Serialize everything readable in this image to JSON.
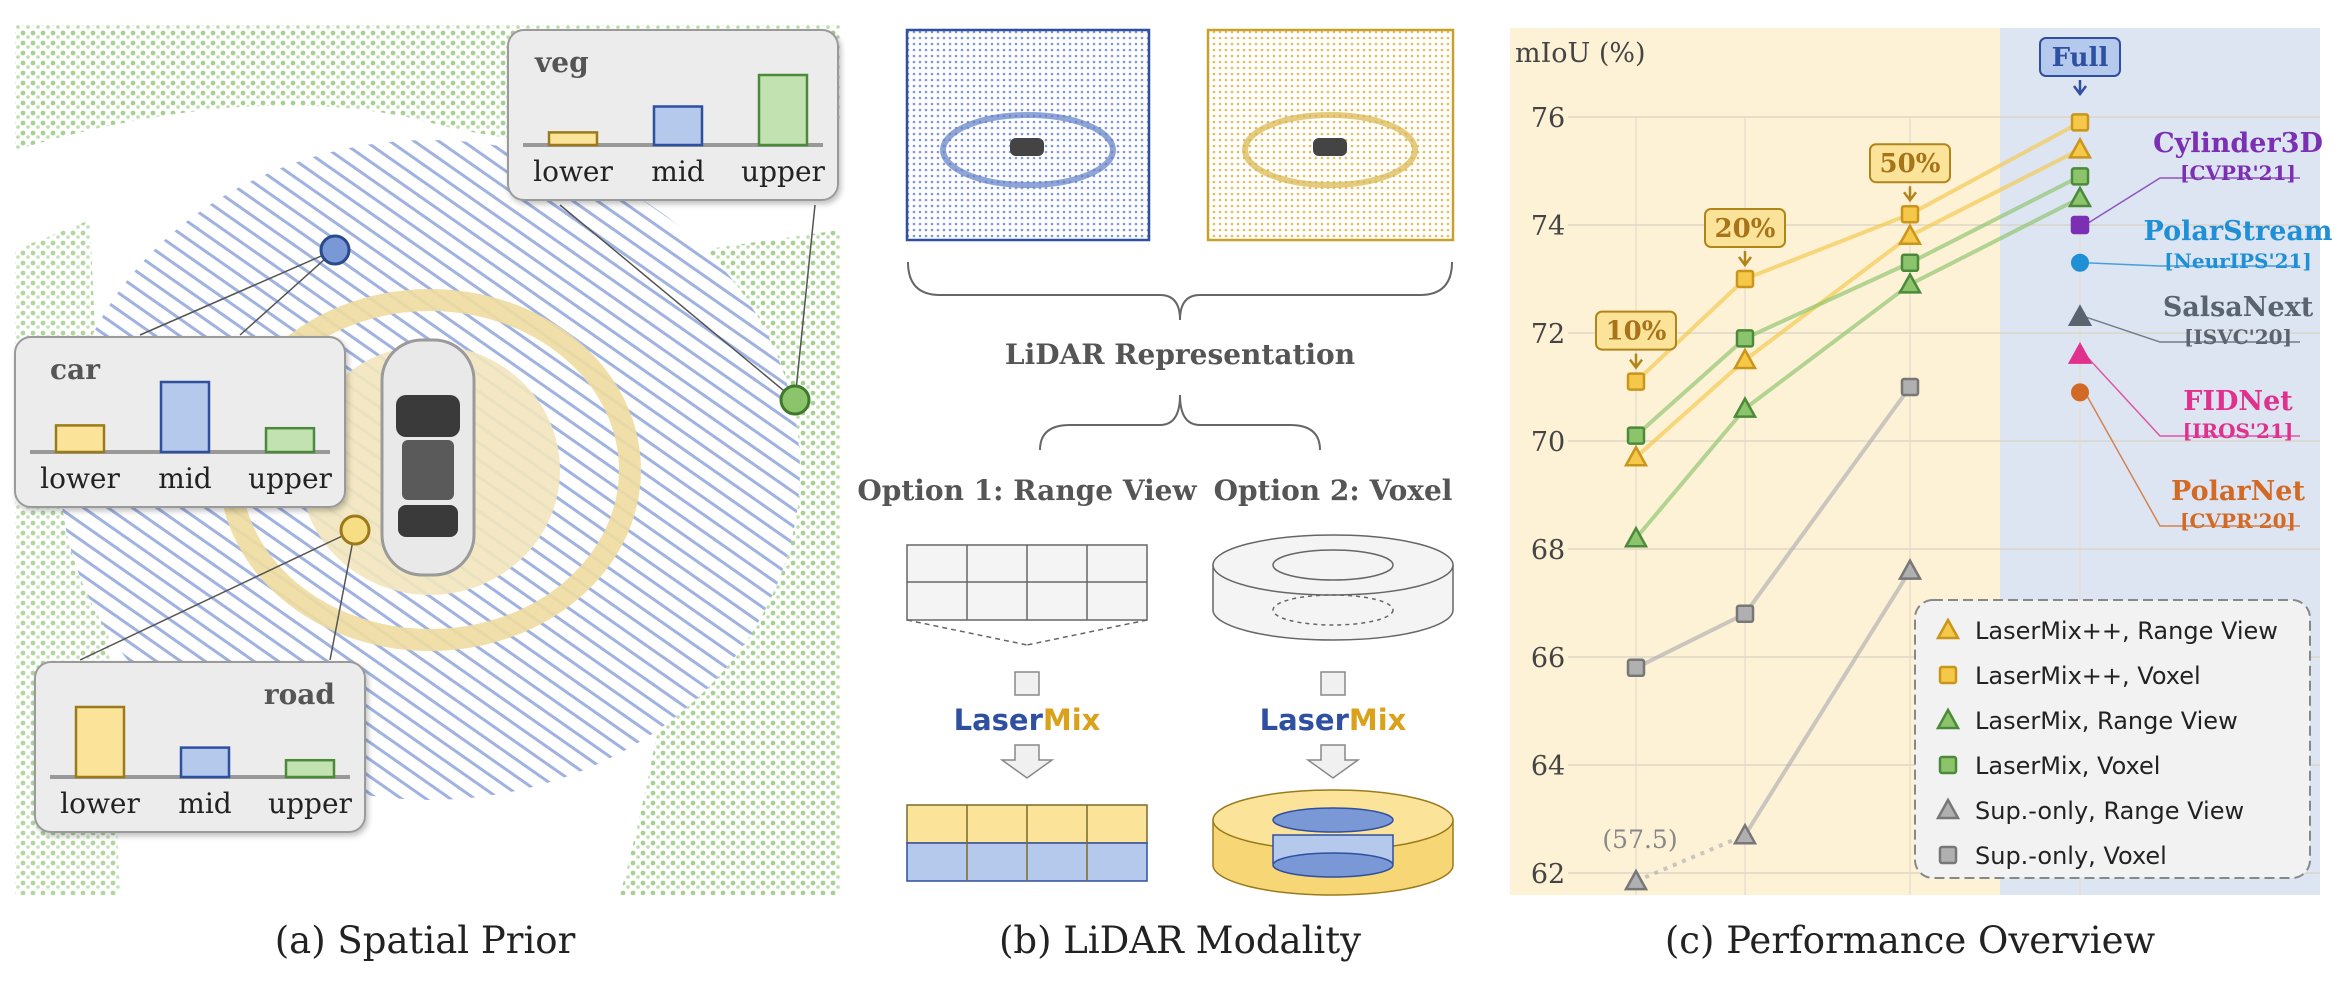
{
  "captions": {
    "a": "(a) Spatial Prior",
    "b": "(b) LiDAR Modality",
    "c": "(c) Performance Overview"
  },
  "panel_a": {
    "bar_labels": [
      "lower",
      "mid",
      "upper"
    ],
    "boxes": [
      {
        "title": "veg",
        "values": [
          0.18,
          0.55,
          1.0
        ]
      },
      {
        "title": "car",
        "values": [
          0.38,
          1.0,
          0.34
        ]
      },
      {
        "title": "road",
        "values": [
          1.0,
          0.42,
          0.24
        ]
      }
    ],
    "colors": {
      "lower": "#fbe49a",
      "mid": "#b5c9ec",
      "upper": "#c3e2b2"
    }
  },
  "panel_b": {
    "representation": "LiDAR Representation",
    "option1": "Option 1: Range View",
    "option2": "Option 2: Voxel",
    "mix_word_1": "Laser",
    "mix_word_2": "Mix"
  },
  "chart_data": {
    "type": "line",
    "ylabel": "mIoU (%)",
    "ylim": [
      62,
      76
    ],
    "yticks": [
      62,
      64,
      66,
      68,
      70,
      72,
      74,
      76
    ],
    "grid": true,
    "x": [
      "10%",
      "20%",
      "50%",
      "Full"
    ],
    "callouts": [
      "10%",
      "20%",
      "50%",
      "Full"
    ],
    "series": [
      {
        "name": "LaserMix++, Range View",
        "marker": "triangle",
        "color": "#f5c84a",
        "values": [
          69.7,
          71.5,
          73.8,
          75.4
        ]
      },
      {
        "name": "LaserMix++, Voxel",
        "marker": "square",
        "color": "#f5c84a",
        "values": [
          71.1,
          73.0,
          74.2,
          75.9
        ]
      },
      {
        "name": "LaserMix, Range View",
        "marker": "triangle",
        "color": "#8cc46b",
        "values": [
          68.2,
          70.6,
          72.9,
          74.5
        ]
      },
      {
        "name": "LaserMix, Voxel",
        "marker": "square",
        "color": "#8cc46b",
        "values": [
          70.1,
          71.9,
          73.3,
          74.9
        ]
      },
      {
        "name": "Sup.-only, Range View",
        "marker": "triangle",
        "color": "#b0b0b0",
        "values": [
          57.5,
          62.7,
          67.6,
          null
        ]
      },
      {
        "name": "Sup.-only, Voxel",
        "marker": "square",
        "color": "#b0b0b0",
        "values": [
          65.8,
          66.8,
          71.0,
          null
        ]
      }
    ],
    "annotation": "(57.5)",
    "references": [
      {
        "name": "Cylinder3D",
        "venue": "[CVPR'21]",
        "value": 74.0,
        "marker": "square",
        "color": "#7b2fb3"
      },
      {
        "name": "PolarStream",
        "venue": "[NeurIPS'21]",
        "value": 73.3,
        "marker": "circle",
        "color": "#1f8fd6"
      },
      {
        "name": "SalsaNext",
        "venue": "[ISVC'20]",
        "value": 72.3,
        "marker": "triangle",
        "color": "#5a6370"
      },
      {
        "name": "FIDNet",
        "venue": "[IROS'21]",
        "value": 71.6,
        "marker": "triangle",
        "color": "#e0328c"
      },
      {
        "name": "PolarNet",
        "venue": "[CVPR'20]",
        "value": 70.9,
        "marker": "circle",
        "color": "#d26a25"
      }
    ]
  }
}
